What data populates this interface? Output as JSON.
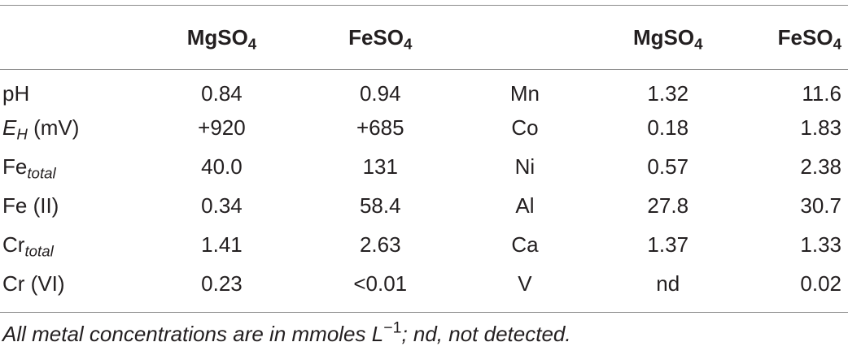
{
  "header": {
    "col1": {
      "base": "MgSO",
      "sub": "4"
    },
    "col2": {
      "base": "FeSO",
      "sub": "4"
    },
    "col4": {
      "base": "MgSO",
      "sub": "4"
    },
    "col5": {
      "base": "FeSO",
      "sub": "4"
    }
  },
  "rows": [
    {
      "param": "pH",
      "mg": "0.84",
      "fe": "0.94",
      "metal": "Mn",
      "mg2": "1.32",
      "fe2": "11.6"
    },
    {
      "param_sym": "E",
      "param_sub": "H",
      "param_rest": " (mV)",
      "mg": "+920",
      "fe": "+685",
      "metal": "Co",
      "mg2": "0.18",
      "fe2": "1.83"
    },
    {
      "param_base": "Fe",
      "param_sub": "total",
      "mg": "40.0",
      "fe": "131",
      "metal": "Ni",
      "mg2": "0.57",
      "fe2": "2.38"
    },
    {
      "param": "Fe (II)",
      "mg": "0.34",
      "fe": "58.4",
      "metal": "Al",
      "mg2": "27.8",
      "fe2": "30.7"
    },
    {
      "param_base": "Cr",
      "param_sub": "total",
      "mg": "1.41",
      "fe": "2.63",
      "metal": "Ca",
      "mg2": "1.37",
      "fe2": "1.33"
    },
    {
      "param": "Cr (VI)",
      "mg": "0.23",
      "fe": "<0.01",
      "metal": "V",
      "mg2": "nd",
      "fe2": "0.02"
    }
  ],
  "footnote": {
    "before": "All metal concentrations are in mmoles L",
    "sup": "−1",
    "after": "; nd, not detected."
  }
}
